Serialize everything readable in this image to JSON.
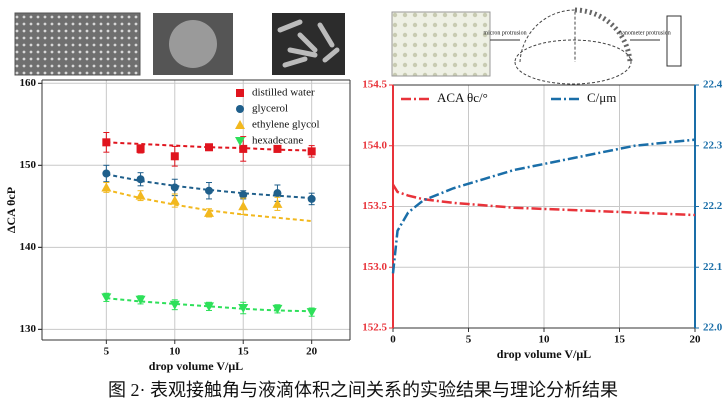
{
  "chart_data": [
    {
      "type": "scatter",
      "xlabel": "drop volume V/μL",
      "ylabel": "ΔCA θcP",
      "x": [
        5,
        7.5,
        10,
        12.5,
        15,
        17.5,
        20
      ],
      "xlim": [
        0.3,
        22.8
      ],
      "xticks": [
        5,
        10,
        15,
        20
      ],
      "ylim": [
        128.7,
        160.4
      ],
      "yticks": [
        130,
        140,
        150,
        160
      ],
      "grid": true,
      "legend": "upper right",
      "series": [
        {
          "name": "distilled water",
          "color": "#e0141e",
          "marker": "square",
          "values": [
            152.8,
            152.0,
            151.1,
            152.2,
            152.0,
            152.0,
            151.7
          ],
          "errors": [
            1.2,
            0.5,
            1.2,
            0.4,
            1.5,
            0.4,
            0.7
          ],
          "fit": [
            152.8,
            152.6,
            152.4,
            152.2,
            152.1,
            151.9,
            151.8
          ]
        },
        {
          "name": "glycerol",
          "color": "#1f5f8b",
          "marker": "circle",
          "values": [
            149.0,
            148.3,
            147.3,
            146.9,
            146.4,
            146.6,
            145.9
          ],
          "errors": [
            1.0,
            0.8,
            1.0,
            1.0,
            0.5,
            1.0,
            0.7
          ],
          "fit": [
            148.9,
            148.1,
            147.5,
            147.0,
            146.6,
            146.3,
            146.0
          ]
        },
        {
          "name": "ethylene glycol",
          "color": "#f2b81e",
          "marker": "triangle",
          "values": [
            147.3,
            146.3,
            145.7,
            144.2,
            145.0,
            145.3,
            null
          ],
          "errors": [
            0.6,
            0.6,
            0.8,
            0.5,
            1.0,
            0.8,
            null
          ],
          "fit": [
            147.0,
            146.0,
            145.2,
            144.5,
            144.0,
            143.6,
            143.2
          ]
        },
        {
          "name": "hexadecane",
          "color": "#2ee05a",
          "marker": "triangle-down",
          "values": [
            133.9,
            133.6,
            133.0,
            132.8,
            132.6,
            132.5,
            132.1
          ],
          "errors": [
            0.5,
            0.5,
            0.6,
            0.5,
            0.7,
            0.5,
            0.5
          ],
          "fit": [
            133.8,
            133.4,
            133.1,
            132.8,
            132.5,
            132.3,
            132.2
          ]
        }
      ]
    },
    {
      "type": "line",
      "xlabel": "drop volume V/μL",
      "x": [
        0,
        0.3,
        1,
        2,
        4,
        6,
        8,
        10,
        12,
        14,
        16,
        18,
        20
      ],
      "xlim": [
        0,
        20
      ],
      "xticks": [
        0,
        5,
        10,
        15,
        20
      ],
      "ylim": [
        152.5,
        154.5
      ],
      "yticks": [
        152.5,
        {
          "value": 153,
          "label": "153.0"
        },
        153.5,
        {
          "value": 154,
          "label": "154.0"
        },
        154.5
      ],
      "y2lim": [
        22.0,
        22.4
      ],
      "y2ticks": [
        {
          "value": 22,
          "label": "22.0"
        },
        22.1,
        22.2,
        22.3,
        22.4
      ],
      "grid": true,
      "legend": "upper center",
      "series": [
        {
          "name": "ACA θc/°",
          "color": "#e8333a",
          "axis": "y",
          "values": [
            153.68,
            153.62,
            153.59,
            153.56,
            153.53,
            153.51,
            153.49,
            153.48,
            153.47,
            153.46,
            153.45,
            153.44,
            153.43
          ]
        },
        {
          "name": "C/μm",
          "color": "#1a6ea8",
          "axis": "y2",
          "values": [
            22.09,
            22.16,
            22.19,
            22.21,
            22.23,
            22.245,
            22.26,
            22.27,
            22.28,
            22.29,
            22.3,
            22.305,
            22.31
          ]
        }
      ]
    }
  ],
  "diagram": {
    "labels": [
      "micron protrusion",
      "nanometer protrusion"
    ]
  },
  "caption": "图 2· 表观接触角与液滴体积之间关系的实验结果与理论分析结果"
}
